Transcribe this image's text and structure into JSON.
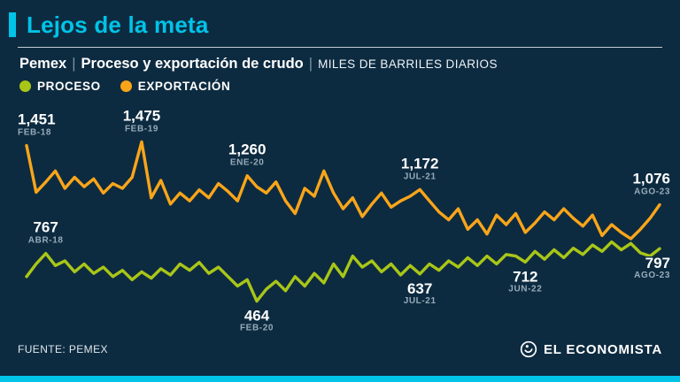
{
  "page": {
    "title": "Lejos de la meta",
    "subtitle": {
      "brand": "Pemex",
      "separator": "|",
      "description": "Proceso y exportación de crudo",
      "units": "MILES DE BARRILES DIARIOS"
    },
    "legend": [
      {
        "label": "PROCESO",
        "color": "#a9c618"
      },
      {
        "label": "EXPORTACIÓN",
        "color": "#f9a51a"
      }
    ],
    "footer": {
      "source": "FUENTE: PEMEX",
      "brand": "EL ECONOMISTA"
    }
  },
  "colors": {
    "background": "#0d2b40",
    "accent_cyan": "#00c3e8",
    "process_green": "#a9c618",
    "export_orange": "#f9a51a",
    "annotation_date_gray": "#97abb9",
    "text_white": "#ffffff"
  },
  "chart_data": {
    "type": "line",
    "title": "Pemex | Proceso y exportación de crudo",
    "ylabel": "Miles de barriles diarios",
    "x_start": "FEB-18",
    "x_end": "AGO-23",
    "x_interval": "monthly",
    "ylim": [
      400,
      1550
    ],
    "grid": false,
    "legend_position": "top-left",
    "series": [
      {
        "name": "PROCESO",
        "color": "#a9c618",
        "values": [
          620,
          700,
          767,
          690,
          720,
          650,
          700,
          640,
          680,
          620,
          660,
          600,
          650,
          610,
          670,
          630,
          700,
          660,
          710,
          640,
          680,
          620,
          560,
          600,
          464,
          540,
          590,
          530,
          620,
          560,
          640,
          580,
          700,
          620,
          750,
          680,
          720,
          650,
          700,
          630,
          690,
          637,
          700,
          660,
          720,
          680,
          740,
          690,
          750,
          700,
          760,
          750,
          712,
          780,
          730,
          790,
          740,
          800,
          760,
          820,
          780,
          840,
          790,
          830,
          770,
          750,
          797
        ]
      },
      {
        "name": "EXPORTACIÓN",
        "color": "#f9a51a",
        "values": [
          1451,
          1155,
          1220,
          1290,
          1180,
          1250,
          1190,
          1240,
          1150,
          1210,
          1180,
          1250,
          1475,
          1120,
          1230,
          1080,
          1150,
          1100,
          1170,
          1120,
          1210,
          1160,
          1100,
          1260,
          1190,
          1150,
          1220,
          1100,
          1020,
          1180,
          1130,
          1290,
          1150,
          1050,
          1120,
          1000,
          1080,
          1150,
          1060,
          1100,
          1130,
          1172,
          1100,
          1030,
          980,
          1050,
          920,
          980,
          890,
          1010,
          950,
          1020,
          900,
          960,
          1030,
          980,
          1050,
          990,
          940,
          1010,
          880,
          950,
          900,
          860,
          920,
          990,
          1076
        ]
      }
    ],
    "annotations": [
      {
        "series": "EXPORTACIÓN",
        "index": 0,
        "value": "1,451",
        "date": "FEB-18",
        "placement": "above",
        "anchor": "start"
      },
      {
        "series": "EXPORTACIÓN",
        "index": 12,
        "value": "1,475",
        "date": "FEB-19",
        "placement": "above",
        "anchor": "middle"
      },
      {
        "series": "EXPORTACIÓN",
        "index": 23,
        "value": "1,260",
        "date": "ENE-20",
        "placement": "above",
        "anchor": "middle"
      },
      {
        "series": "EXPORTACIÓN",
        "index": 41,
        "value": "1,172",
        "date": "JUL-21",
        "placement": "above",
        "anchor": "middle"
      },
      {
        "series": "EXPORTACIÓN",
        "index": 66,
        "value": "1,076",
        "date": "AGO-23",
        "placement": "above",
        "anchor": "end"
      },
      {
        "series": "PROCESO",
        "index": 2,
        "value": "767",
        "date": "ABR-18",
        "placement": "above",
        "anchor": "middle"
      },
      {
        "series": "PROCESO",
        "index": 24,
        "value": "464",
        "date": "FEB-20",
        "placement": "below",
        "anchor": "middle"
      },
      {
        "series": "PROCESO",
        "index": 41,
        "value": "637",
        "date": "JUL-21",
        "placement": "below",
        "anchor": "middle"
      },
      {
        "series": "PROCESO",
        "index": 52,
        "value": "712",
        "date": "JUN-22",
        "placement": "below",
        "anchor": "middle"
      },
      {
        "series": "PROCESO",
        "index": 66,
        "value": "797",
        "date": "AGO-23",
        "placement": "below",
        "anchor": "end"
      }
    ]
  }
}
